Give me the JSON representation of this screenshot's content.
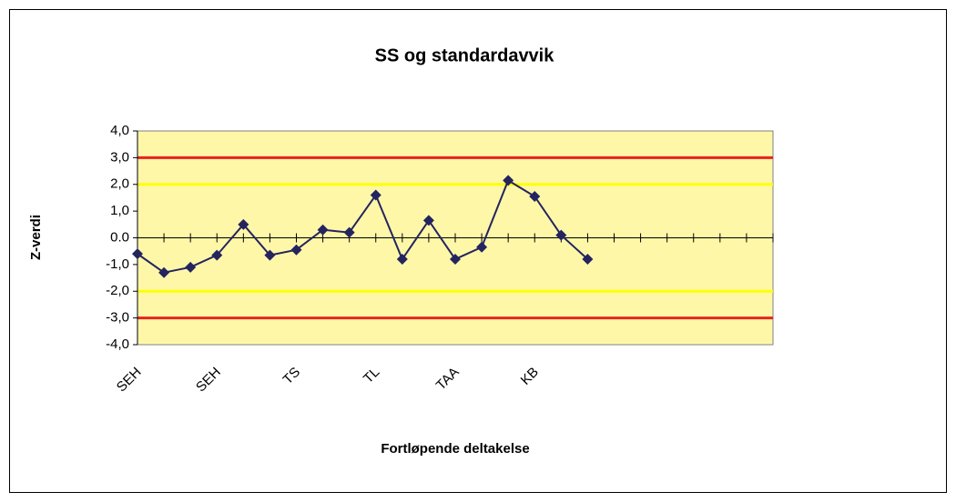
{
  "chart_data": {
    "type": "line",
    "title": "SS og standardavvik",
    "x_label": "Fortløpende deltakelse",
    "y_label": "Z-verdi",
    "categories": [
      "SEH",
      null,
      null,
      "SEH",
      null,
      null,
      "TS",
      null,
      null,
      "TL",
      null,
      null,
      "TAA",
      null,
      null,
      "KB",
      null,
      null,
      null,
      null,
      null,
      null,
      null,
      null,
      null
    ],
    "series": [
      {
        "name": "Z-verdi",
        "color": "#24245f",
        "values": [
          -0.6,
          -1.3,
          -1.1,
          -0.65,
          0.5,
          -0.65,
          -0.45,
          0.3,
          0.2,
          1.6,
          -0.8,
          0.65,
          -0.8,
          -0.35,
          2.15,
          1.55,
          0.1,
          -0.8,
          null,
          null,
          null,
          null,
          null,
          null,
          null
        ]
      }
    ],
    "reference_lines": [
      {
        "value": 3,
        "color": "#e8231e"
      },
      {
        "value": 2,
        "color": "#ffff00"
      },
      {
        "value": -2,
        "color": "#ffff00"
      },
      {
        "value": -3,
        "color": "#e8231e"
      }
    ],
    "ylim": [
      -4,
      4
    ],
    "yticks": [
      {
        "value": 4,
        "label": "4,0"
      },
      {
        "value": 3,
        "label": "3,0"
      },
      {
        "value": 2,
        "label": "2,0"
      },
      {
        "value": 1,
        "label": "1,0"
      },
      {
        "value": 0,
        "label": "0.0"
      },
      {
        "value": -1,
        "label": "-1,0"
      },
      {
        "value": -2,
        "label": "-2,0"
      },
      {
        "value": -3,
        "label": "-3,0"
      },
      {
        "value": -4,
        "label": "-4,0"
      }
    ],
    "plot_background": "#fff7a8"
  }
}
